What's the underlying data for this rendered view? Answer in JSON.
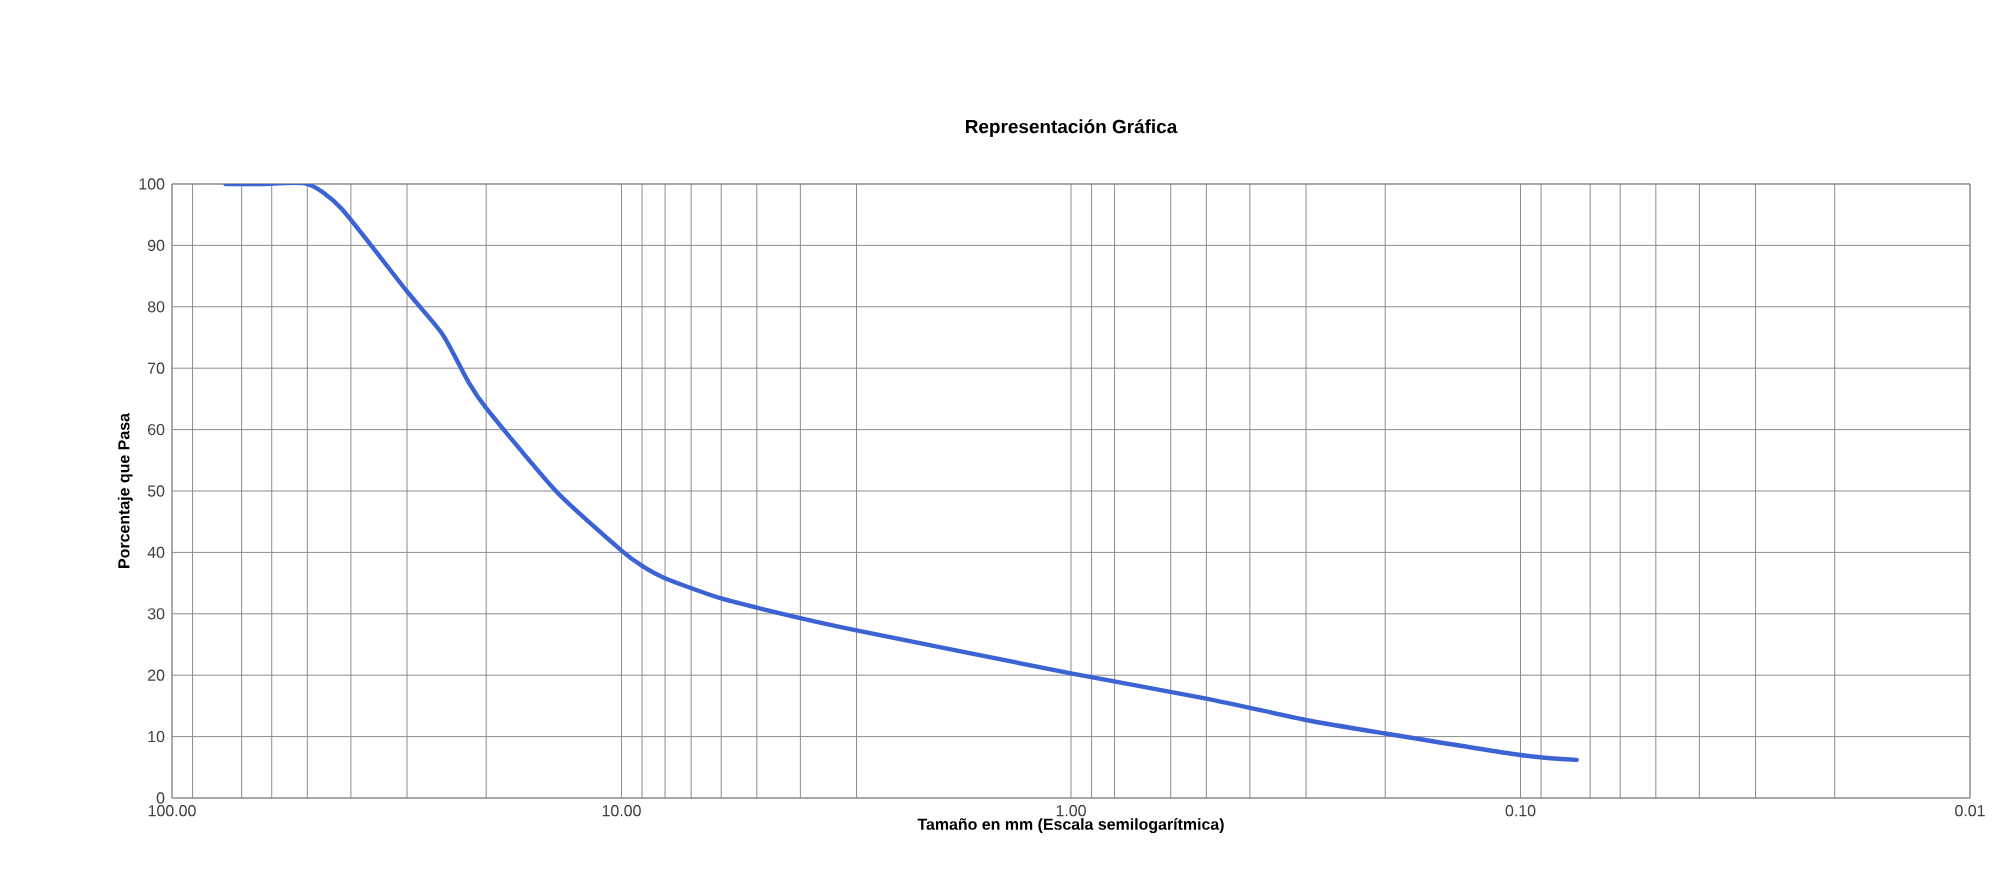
{
  "chart_data": {
    "type": "line",
    "title": "Representación Gráfica",
    "xlabel": "Tamaño en mm (Escala semilogarítmica)",
    "ylabel": "Porcentaje que Pasa",
    "log": "x",
    "grid": true,
    "line_style": "solid",
    "xlim": [
      100,
      0.01
    ],
    "xticks": [
      {
        "value": 100,
        "label": "100.00"
      },
      {
        "value": 90,
        "label": null
      },
      {
        "value": 70,
        "label": null
      },
      {
        "value": 60,
        "label": null
      },
      {
        "value": 50,
        "label": null
      },
      {
        "value": 40,
        "label": null
      },
      {
        "value": 30,
        "label": null
      },
      {
        "value": 20,
        "label": null
      },
      {
        "value": 10,
        "label": "10.00"
      },
      {
        "value": 9,
        "label": null
      },
      {
        "value": 8,
        "label": null
      },
      {
        "value": 7,
        "label": null
      },
      {
        "value": 6,
        "label": null
      },
      {
        "value": 5,
        "label": null
      },
      {
        "value": 4,
        "label": null
      },
      {
        "value": 3,
        "label": null
      },
      {
        "value": 1,
        "label": "1.00"
      },
      {
        "value": 0.9,
        "label": null
      },
      {
        "value": 0.8,
        "label": null
      },
      {
        "value": 0.6,
        "label": null
      },
      {
        "value": 0.5,
        "label": null
      },
      {
        "value": 0.4,
        "label": null
      },
      {
        "value": 0.3,
        "label": null
      },
      {
        "value": 0.2,
        "label": null
      },
      {
        "value": 0.1,
        "label": "0.10"
      },
      {
        "value": 0.09,
        "label": null
      },
      {
        "value": 0.07,
        "label": null
      },
      {
        "value": 0.06,
        "label": null
      },
      {
        "value": 0.05,
        "label": null
      },
      {
        "value": 0.04,
        "label": null
      },
      {
        "value": 0.03,
        "label": null
      },
      {
        "value": 0.02,
        "label": null
      },
      {
        "value": 0.01,
        "label": "0.01"
      }
    ],
    "ylim": [
      0,
      100
    ],
    "yticks": [
      0,
      10,
      20,
      30,
      40,
      50,
      60,
      70,
      80,
      90,
      100
    ],
    "x": [
      76,
      63,
      50,
      42,
      30,
      25,
      22,
      20,
      14,
      10,
      9,
      8,
      6,
      4,
      3,
      1,
      0.5,
      0.3,
      0.2,
      0.1,
      0.075
    ],
    "series": [
      {
        "color": "#3b63d4",
        "values": [
          100,
          100,
          100,
          96,
          82.5,
          75.5,
          68,
          63.5,
          50,
          40.3,
          37.8,
          35.8,
          32.5,
          29.3,
          27.3,
          20.3,
          16.2,
          12.7,
          10.5,
          7,
          6.2
        ]
      }
    ]
  }
}
